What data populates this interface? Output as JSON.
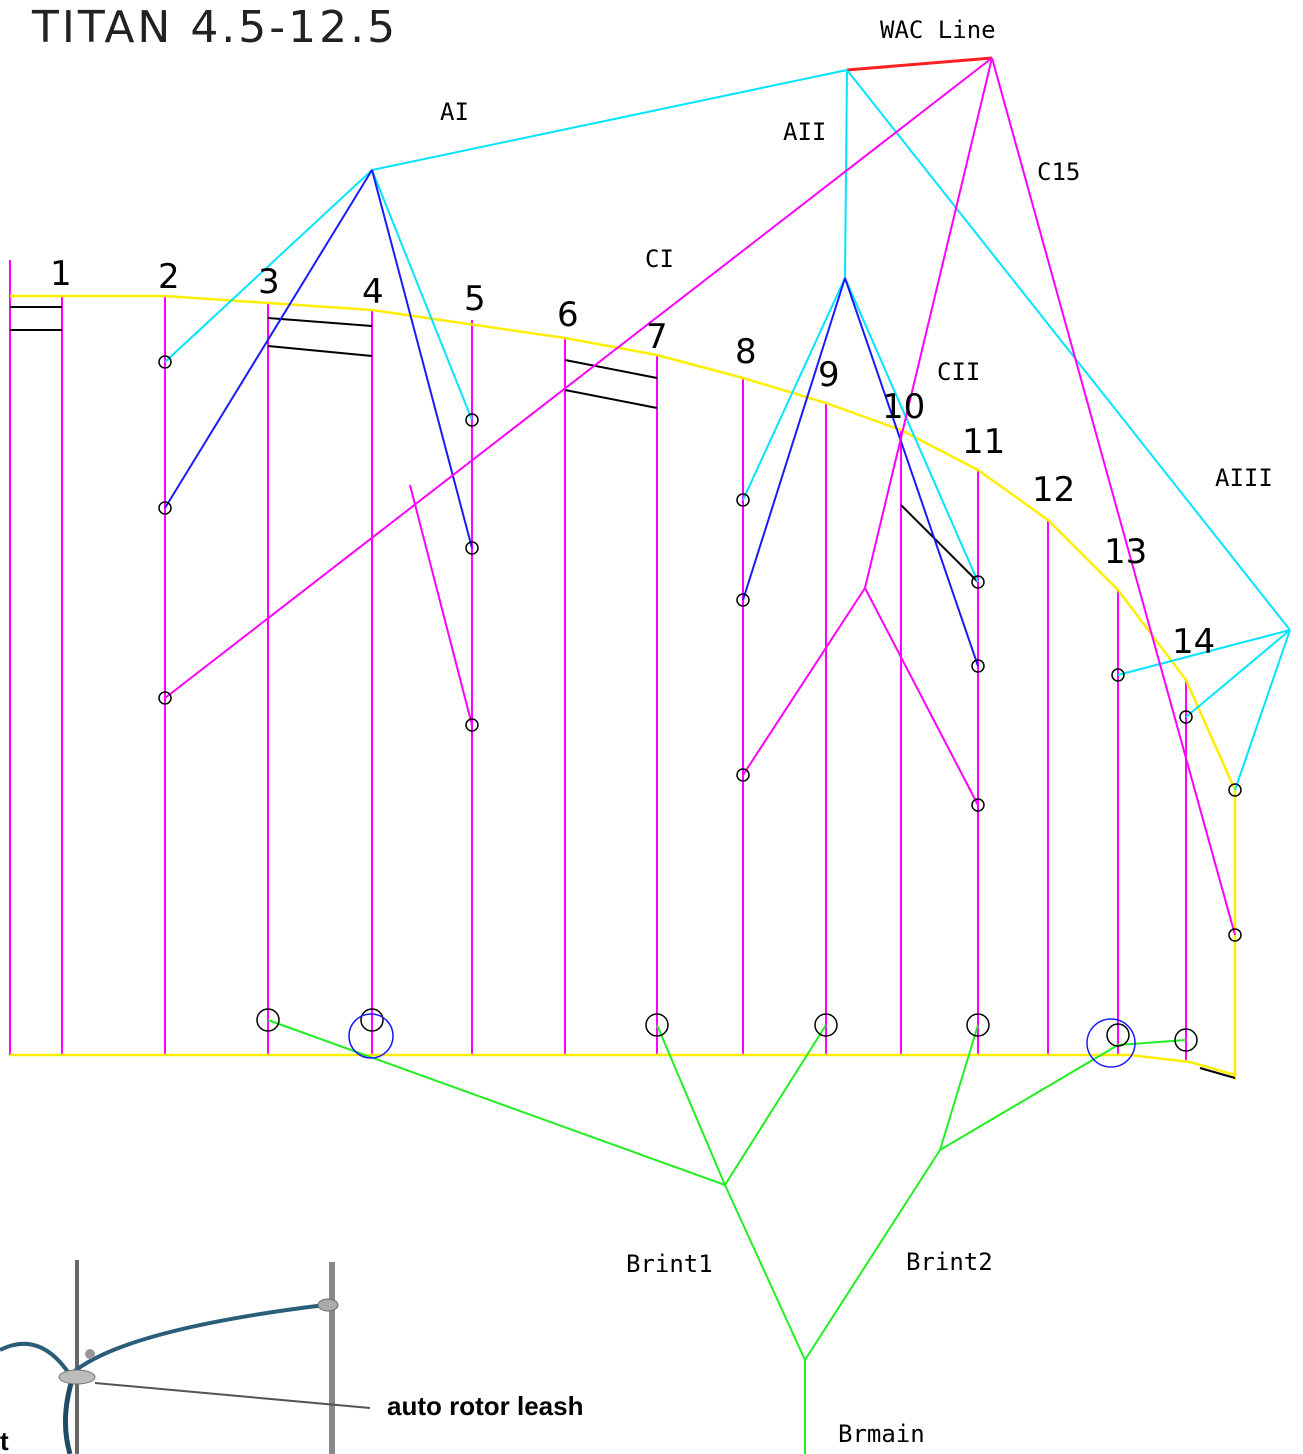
{
  "title": "TITAN 4.5-12.5",
  "line_labels": [
    "WAC Line",
    "AI",
    "AII",
    "C15",
    "CI",
    "CII",
    "AIII",
    "Brint1",
    "Brint2",
    "Brmain"
  ],
  "ribs": [
    "1",
    "2",
    "3",
    "4",
    "5",
    "6",
    "7",
    "8",
    "9",
    "10",
    "11",
    "12",
    "13",
    "14"
  ],
  "inset": {
    "callout": "auto rotor leash",
    "cut_text": "t"
  }
}
